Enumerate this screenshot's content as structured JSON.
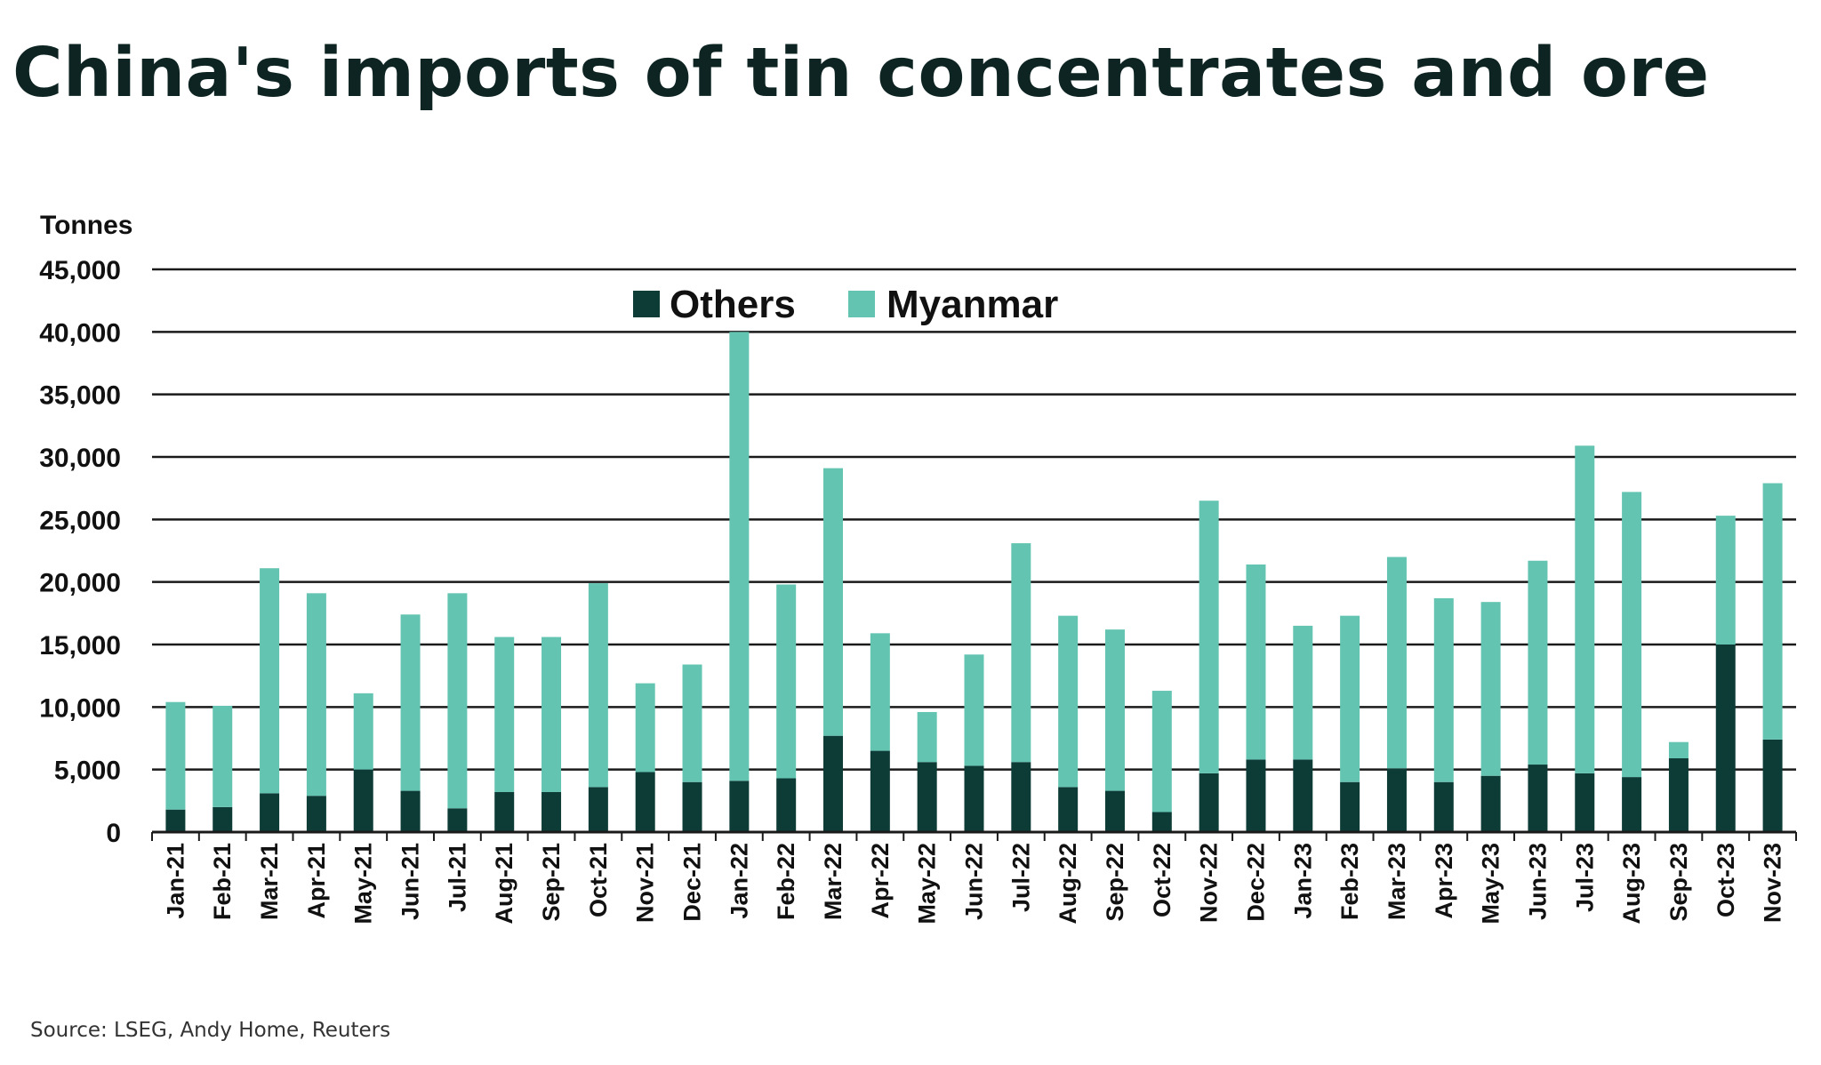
{
  "title": "China's imports of tin concentrates and ore",
  "source": "Source: LSEG, Andy Home, Reuters",
  "colors": {
    "others": "#0d3b36",
    "myanmar": "#64c4b2",
    "grid": "#1a1a1a",
    "title": "#0d2422"
  },
  "chart_data": {
    "type": "bar",
    "stacked": true,
    "unit_label": "Tonnes",
    "ylim": [
      0,
      45000
    ],
    "yticks": [
      0,
      5000,
      10000,
      15000,
      20000,
      25000,
      30000,
      35000,
      40000,
      45000
    ],
    "ytick_labels": [
      "0",
      "5,000",
      "10,000",
      "15,000",
      "20,000",
      "25,000",
      "30,000",
      "35,000",
      "40,000",
      "45,000"
    ],
    "grid": true,
    "legend_position": "top-center",
    "categories": [
      "Jan-21",
      "Feb-21",
      "Mar-21",
      "Apr-21",
      "May-21",
      "Jun-21",
      "Jul-21",
      "Aug-21",
      "Sep-21",
      "Oct-21",
      "Nov-21",
      "Dec-21",
      "Jan-22",
      "Feb-22",
      "Mar-22",
      "Apr-22",
      "May-22",
      "Jun-22",
      "Jul-22",
      "Aug-22",
      "Sep-22",
      "Oct-22",
      "Nov-22",
      "Dec-22",
      "Jan-23",
      "Feb-23",
      "Mar-23",
      "Apr-23",
      "May-23",
      "Jun-23",
      "Jul-23",
      "Aug-23",
      "Sep-23",
      "Oct-23",
      "Nov-23"
    ],
    "series": [
      {
        "name": "Others",
        "color": "#0d3b36",
        "values": [
          1800,
          2000,
          3100,
          2900,
          5000,
          3300,
          1900,
          3200,
          3200,
          3600,
          4800,
          4000,
          4100,
          4300,
          7700,
          6500,
          5600,
          5300,
          5600,
          3600,
          3300,
          1600,
          4700,
          5800,
          5800,
          4000,
          5100,
          4000,
          4500,
          5400,
          4700,
          4400,
          5900,
          15000,
          7400
        ]
      },
      {
        "name": "Myanmar",
        "color": "#64c4b2",
        "values": [
          8600,
          8100,
          18000,
          16200,
          6100,
          14100,
          17200,
          12400,
          12400,
          16300,
          7100,
          9400,
          35900,
          15500,
          21400,
          9400,
          4000,
          8900,
          17500,
          13700,
          12900,
          9700,
          21800,
          15600,
          10700,
          13300,
          16900,
          14700,
          13900,
          16300,
          26200,
          22800,
          1300,
          10300,
          20500
        ]
      }
    ]
  }
}
